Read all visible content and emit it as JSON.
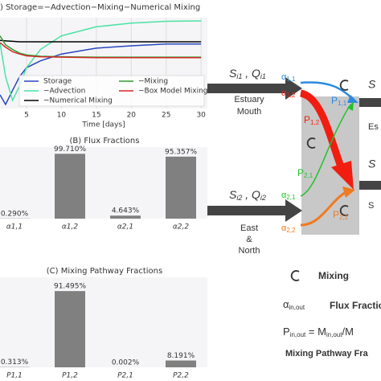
{
  "chart_data": [
    {
      "type": "line",
      "title": ") Storage=−Advection−Mixing−Numerical Mixing",
      "xlabel": "Time [days]",
      "x": [
        1.2,
        2,
        3,
        4,
        5,
        7,
        10,
        15,
        20,
        25,
        30
      ],
      "series": [
        {
          "name": "Storage",
          "color": "#2846c0",
          "values": [
            -0.7,
            -0.91,
            -0.6,
            -0.3,
            -0.1,
            0.05,
            0.2,
            0.33,
            0.38,
            0.42,
            0.42
          ]
        },
        {
          "name": "−Advection",
          "color": "#4be3a3",
          "values": [
            0.45,
            -0.3,
            -0.82,
            -0.5,
            -0.1,
            0.3,
            0.6,
            0.8,
            0.88,
            0.92,
            0.93
          ]
        },
        {
          "name": "−Numerical Mixing",
          "color": "#000000",
          "values": [
            0.5,
            0.49,
            0.48,
            0.47,
            0.47,
            0.47,
            0.47,
            0.47,
            0.47,
            0.47,
            0.47
          ]
        },
        {
          "name": "−Mixing",
          "color": "#2ca02c",
          "values": [
            0.6,
            0.4,
            0.3,
            0.22,
            0.18,
            0.15,
            0.14,
            0.13,
            0.13,
            0.13,
            0.13
          ]
        },
        {
          "name": "−Box Model Mixing",
          "color": "#d62728",
          "values": [
            0.45,
            0.35,
            0.25,
            0.2,
            0.16,
            0.14,
            0.13,
            0.12,
            0.12,
            0.12,
            0.12
          ]
        }
      ],
      "xlim": [
        1.2,
        30.9
      ],
      "ylim": [
        -1,
        1
      ],
      "xticks": [
        5,
        10,
        15,
        20,
        25,
        30
      ],
      "grid": true,
      "legend": "lower center"
    },
    {
      "type": "bar",
      "title": "(B) Flux Fractions",
      "categories": [
        "α1,1",
        "α1,2",
        "α2,1",
        "α2,2"
      ],
      "values": [
        0.29,
        99.71,
        4.643,
        95.357
      ],
      "value_labels": [
        "0.290%",
        "99.710%",
        "4.643%",
        "95.357%"
      ],
      "color": "#808080",
      "ylim": [
        0,
        110
      ]
    },
    {
      "type": "bar",
      "title": "(C) Mixing Pathway Fractions",
      "categories": [
        "P1,1",
        "P1,2",
        "P2,1",
        "P2,2"
      ],
      "values": [
        0.313,
        91.495,
        0.002,
        8.191
      ],
      "value_labels": [
        "0.313%",
        "91.495%",
        "0.002%",
        "8.191%"
      ],
      "color": "#808080",
      "ylim": [
        0,
        108
      ]
    }
  ],
  "diagram": {
    "inputs": [
      {
        "s": "S",
        "s_sub": "i1",
        "sep": " , ",
        "q": "Q",
        "q_sub": "i1",
        "name": [
          "Estuary",
          "Mouth"
        ]
      },
      {
        "s": "S",
        "s_sub": "i2",
        "sep": " , ",
        "q": "Q",
        "q_sub": "i2",
        "name": [
          "East",
          "&",
          "North"
        ]
      }
    ],
    "fluxes": [
      {
        "main": "α",
        "sub": "1,1"
      },
      {
        "main": "α",
        "sub": "1,2"
      },
      {
        "main": "α",
        "sub": "2,1"
      },
      {
        "main": "α",
        "sub": "2,2"
      }
    ],
    "pathways": [
      {
        "main": "P",
        "sub": "1,1"
      },
      {
        "main": "P",
        "sub": "1,2"
      },
      {
        "main": "P",
        "sub": "2,1"
      },
      {
        "main": "P",
        "sub": "2,2"
      }
    ],
    "outputs": [
      "S",
      "Es",
      "S",
      "S"
    ],
    "legend": {
      "mixing": "Mixing",
      "flux_main": "α",
      "flux_sub": "in,out",
      "flux_text": "Flux Fraction",
      "p_main": "P",
      "p_sub": "in,out",
      "p_eq": " = M",
      "p_rhs_sub": "in,out",
      "p_tail": "/M",
      "pathway_text": "Mixing Pathway Fra"
    }
  }
}
